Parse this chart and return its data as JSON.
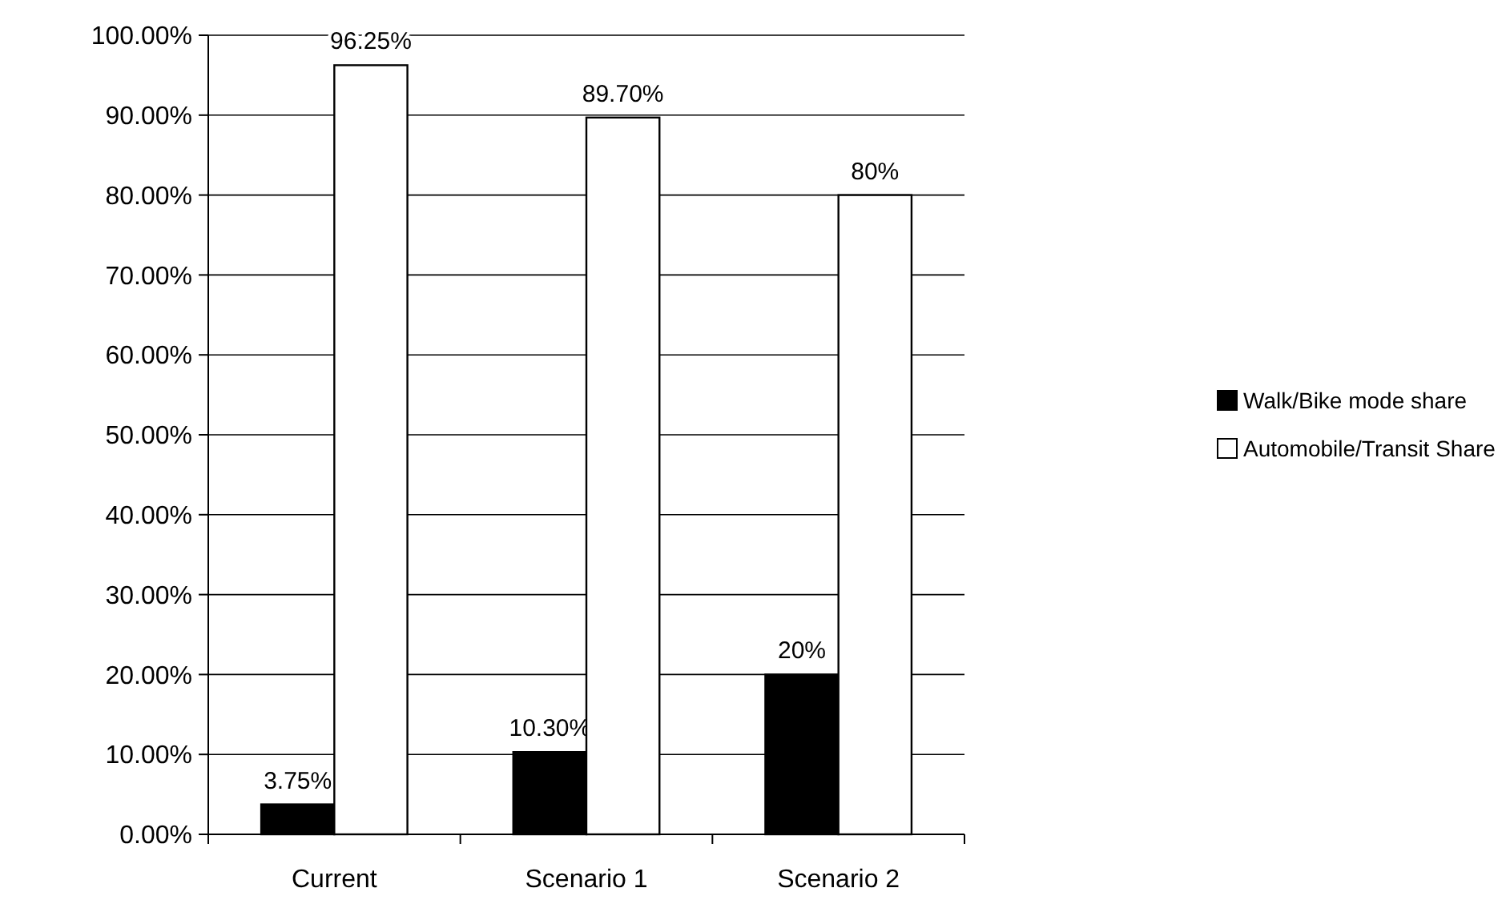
{
  "chart_data": {
    "type": "bar",
    "categories": [
      "Current",
      "Scenario 1",
      "Scenario 2"
    ],
    "series": [
      {
        "name": "Walk/Bike mode share",
        "color": "#000000",
        "values": [
          3.75,
          10.3,
          20
        ],
        "value_labels": [
          "3.75%",
          "10.30%",
          "20%"
        ]
      },
      {
        "name": "Automobile/Transit Share",
        "color": "#ffffff",
        "values": [
          96.25,
          89.7,
          80
        ],
        "value_labels": [
          "96.25%",
          "89.70%",
          "80%"
        ]
      }
    ],
    "ylim": [
      0,
      100
    ],
    "yticks": [
      {
        "value": 0,
        "label": "0.00%"
      },
      {
        "value": 10,
        "label": "10.00%"
      },
      {
        "value": 20,
        "label": "20.00%"
      },
      {
        "value": 30,
        "label": "30.00%"
      },
      {
        "value": 40,
        "label": "40.00%"
      },
      {
        "value": 50,
        "label": "50.00%"
      },
      {
        "value": 60,
        "label": "60.00%"
      },
      {
        "value": 70,
        "label": "70.00%"
      },
      {
        "value": 80,
        "label": "80.00%"
      },
      {
        "value": 90,
        "label": "90.00%"
      },
      {
        "value": 100,
        "label": "100.00%"
      }
    ],
    "grid": "y",
    "legend": "right"
  }
}
